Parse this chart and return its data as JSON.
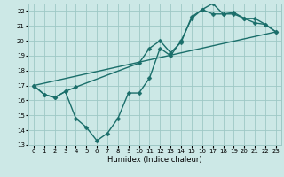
{
  "xlabel": "Humidex (Indice chaleur)",
  "background_color": "#cce8e6",
  "grid_color": "#9ec8c5",
  "line_color": "#1a6e6a",
  "xlim": [
    -0.5,
    23.5
  ],
  "ylim": [
    13,
    22.5
  ],
  "xticks": [
    0,
    1,
    2,
    3,
    4,
    5,
    6,
    7,
    8,
    9,
    10,
    11,
    12,
    13,
    14,
    15,
    16,
    17,
    18,
    19,
    20,
    21,
    22,
    23
  ],
  "yticks": [
    13,
    14,
    15,
    16,
    17,
    18,
    19,
    20,
    21,
    22
  ],
  "line1_x": [
    0,
    1,
    2,
    3,
    4,
    5,
    6,
    7,
    8,
    9,
    10,
    11,
    12,
    13,
    14,
    15,
    16,
    17,
    18,
    19,
    20,
    21,
    22,
    23
  ],
  "line1_y": [
    17.0,
    16.4,
    16.2,
    16.6,
    14.8,
    14.2,
    13.3,
    13.8,
    14.8,
    16.5,
    16.5,
    17.5,
    19.5,
    19.0,
    20.0,
    21.5,
    22.1,
    22.5,
    21.8,
    21.8,
    21.5,
    21.2,
    21.1,
    20.6
  ],
  "line2_x": [
    0,
    23
  ],
  "line2_y": [
    17.0,
    20.6
  ],
  "line3_x": [
    0,
    1,
    2,
    3,
    4,
    10,
    11,
    12,
    13,
    14,
    15,
    16,
    17,
    18,
    19,
    20,
    21,
    22,
    23
  ],
  "line3_y": [
    17.0,
    16.4,
    16.2,
    16.6,
    16.9,
    18.5,
    19.5,
    20.0,
    19.2,
    19.9,
    21.6,
    22.1,
    21.8,
    21.8,
    21.9,
    21.5,
    21.5,
    21.1,
    20.6
  ],
  "markersize": 2.5,
  "linewidth": 1.0
}
